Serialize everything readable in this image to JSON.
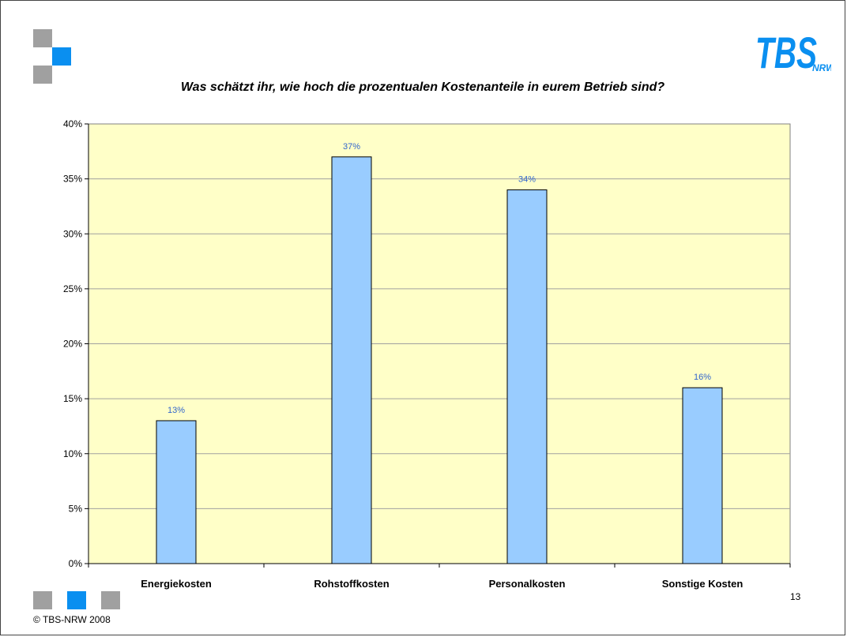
{
  "slide": {
    "title": "Was schätzt ihr, wie hoch die prozentualen Kostenanteile in eurem Betrieb sind?",
    "page_number": "13",
    "copyright": "© TBS-NRW 2008",
    "logo": {
      "main": "TBS",
      "sub": "NRW"
    },
    "colors": {
      "brand_blue": "#0a8ff0",
      "square_gray": "#a0a0a0",
      "plot_background": "#ffffc8",
      "bar_fill": "#99ccff",
      "data_label": "#3366cc"
    }
  },
  "chart_data": {
    "type": "bar",
    "categories": [
      "Energiekosten",
      "Rohstoffkosten",
      "Personalkosten",
      "Sonstige Kosten"
    ],
    "values": [
      13,
      37,
      34,
      16
    ],
    "value_labels": [
      "13%",
      "37%",
      "34%",
      "16%"
    ],
    "y_ticks": [
      0,
      5,
      10,
      15,
      20,
      25,
      30,
      35,
      40
    ],
    "y_tick_labels": [
      "0%",
      "5%",
      "10%",
      "15%",
      "20%",
      "25%",
      "30%",
      "35%",
      "40%"
    ],
    "ylim": [
      0,
      40
    ],
    "unit": "%",
    "grid": true,
    "legend": "none"
  }
}
